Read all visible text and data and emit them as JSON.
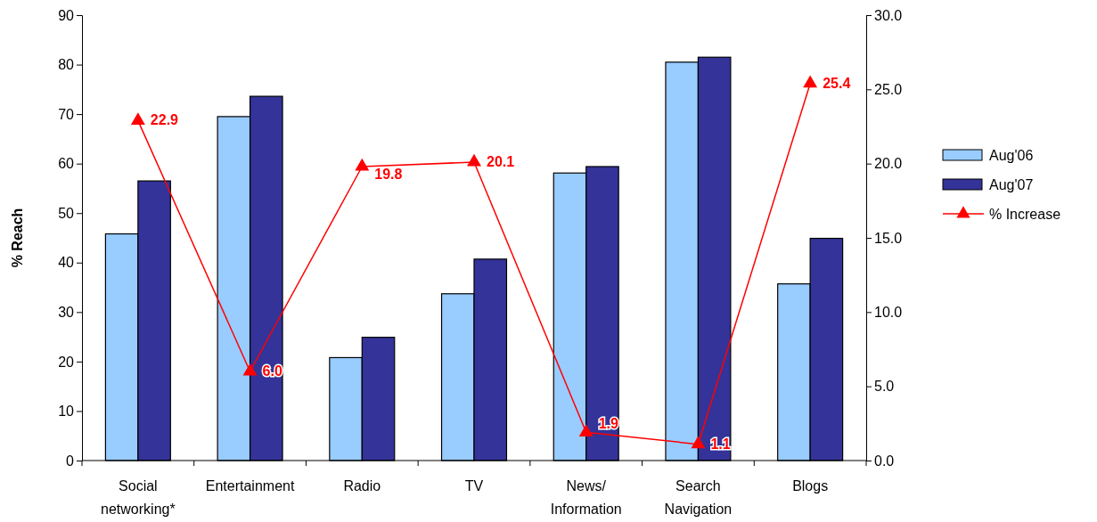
{
  "chart_data": {
    "type": "bar",
    "ylabel": "% Reach",
    "categories": [
      "Social networking*",
      "Entertainment",
      "Radio",
      "TV",
      "News/ Information",
      "Search Navigation",
      "Blogs"
    ],
    "series": [
      {
        "name": "Aug'06",
        "color": "#99ccff",
        "values": [
          45.8,
          69.5,
          20.8,
          33.7,
          58.1,
          80.5,
          35.7
        ]
      },
      {
        "name": "Aug'07",
        "color": "#333399",
        "values": [
          56.5,
          73.6,
          24.9,
          40.7,
          59.4,
          81.5,
          44.9
        ]
      },
      {
        "name": "% Increase",
        "type": "line",
        "axis": "y2",
        "color": "#ff0000",
        "marker": "triangle",
        "values": [
          22.9,
          6.0,
          19.8,
          20.1,
          1.9,
          1.1,
          25.4
        ],
        "value_labels": [
          "22.9",
          "6.0",
          "19.8",
          "20.1",
          "1.9",
          "1.1",
          "25.4"
        ]
      }
    ],
    "ylim": [
      0,
      90
    ],
    "yticks": [
      0,
      10,
      20,
      30,
      40,
      50,
      60,
      70,
      80,
      90
    ],
    "y2lim": [
      0,
      30
    ],
    "y2ticks": [
      {
        "value": 0,
        "label": "0.0"
      },
      {
        "value": 5,
        "label": "5.0"
      },
      {
        "value": 10,
        "label": "10.0"
      },
      {
        "value": 15,
        "label": "15.0"
      },
      {
        "value": 20,
        "label": "20.0"
      },
      {
        "value": 25,
        "label": "25.0"
      },
      {
        "value": 30,
        "label": "30.0"
      }
    ],
    "legend": "right",
    "grid": false
  }
}
